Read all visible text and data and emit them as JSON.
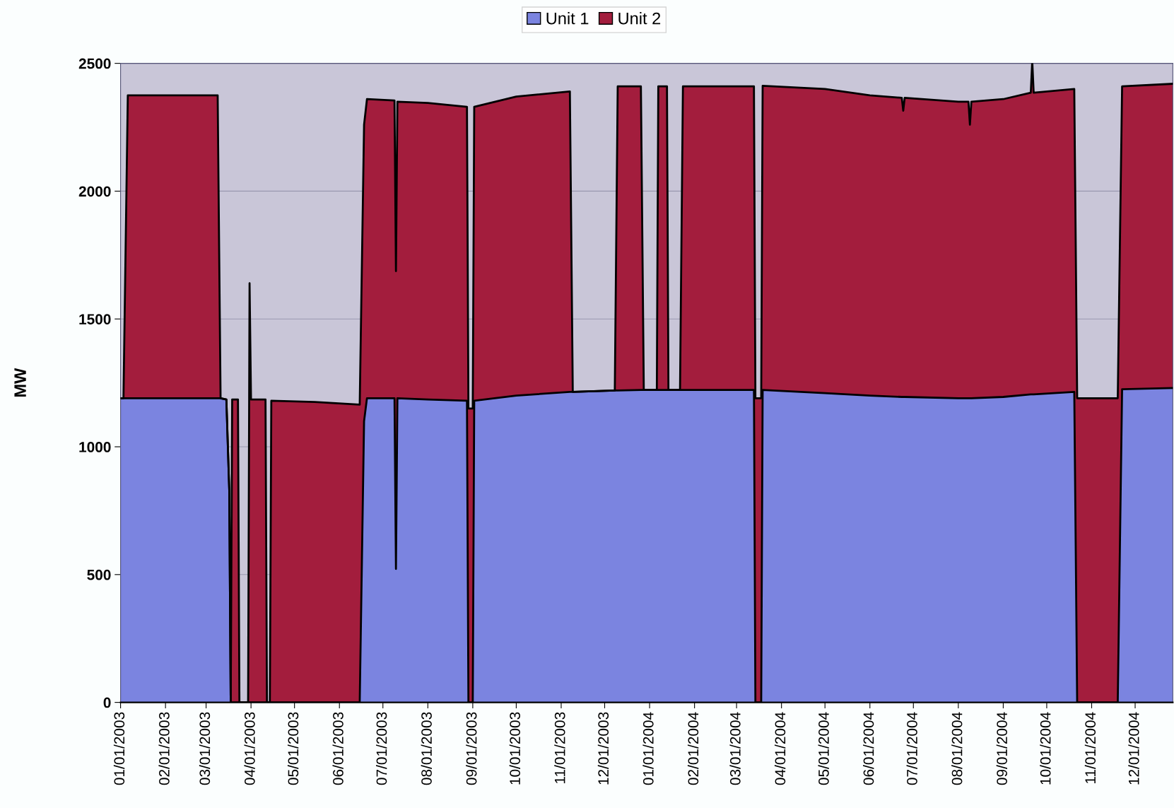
{
  "chart_data": {
    "type": "area",
    "stacked": true,
    "ylabel": "MW",
    "x": [
      "2003-01-01",
      "2003-01-03",
      "2003-01-06",
      "2003-02-01",
      "2003-03-09",
      "2003-03-11",
      "2003-03-15",
      "2003-03-17",
      "2003-03-18",
      "2003-03-19",
      "2003-03-23",
      "2003-03-24",
      "2003-03-30",
      "2003-03-31",
      "2003-04-01",
      "2003-04-11",
      "2003-04-12",
      "2003-04-14",
      "2003-04-15",
      "2003-05-15",
      "2003-06-15",
      "2003-06-18",
      "2003-06-20",
      "2003-07-09",
      "2003-07-10",
      "2003-07-11",
      "2003-08-01",
      "2003-08-28",
      "2003-08-29",
      "2003-09-01",
      "2003-09-02",
      "2003-10-01",
      "2003-11-07",
      "2003-11-09",
      "2003-12-08",
      "2003-12-10",
      "2003-12-26",
      "2003-12-28",
      "2004-01-06",
      "2004-01-07",
      "2004-01-13",
      "2004-01-14",
      "2004-01-22",
      "2004-01-24",
      "2004-03-13",
      "2004-03-14",
      "2004-03-18",
      "2004-03-19",
      "2004-05-01",
      "2004-06-01",
      "2004-06-23",
      "2004-06-24",
      "2004-06-25",
      "2004-08-01",
      "2004-08-08",
      "2004-08-09",
      "2004-08-10",
      "2004-09-01",
      "2004-09-20",
      "2004-09-21",
      "2004-09-22",
      "2004-10-20",
      "2004-10-22",
      "2004-11-19",
      "2004-11-22",
      "2004-12-27"
    ],
    "series": [
      {
        "name": "Unit 1",
        "color": "#7b84e0",
        "values": [
          1190,
          1190,
          1190,
          1190,
          1190,
          1190,
          1185,
          830,
          0,
          0,
          0,
          0,
          0,
          0,
          0,
          0,
          0,
          0,
          0,
          0,
          0,
          1100,
          1190,
          1190,
          522,
          1190,
          1185,
          1180,
          0,
          0,
          1180,
          1200,
          1215,
          1215,
          1220,
          1220,
          1222,
          1222,
          1222,
          1222,
          1222,
          1222,
          1222,
          1222,
          1222,
          0,
          0,
          1222,
          1210,
          1200,
          1195,
          1195,
          1195,
          1190,
          1190,
          1190,
          1190,
          1195,
          1205,
          1205,
          1205,
          1215,
          0,
          0,
          1225,
          1230
        ]
      },
      {
        "name": "Unit 2",
        "color": "#a31d3d",
        "values": [
          0,
          0,
          1185,
          1185,
          1185,
          0,
          0,
          0,
          0,
          1185,
          1185,
          0,
          0,
          1640,
          1185,
          1185,
          0,
          0,
          1180,
          1175,
          1165,
          1160,
          1170,
          1165,
          1165,
          1160,
          1160,
          1150,
          1150,
          1150,
          1150,
          1170,
          1175,
          0,
          0,
          1190,
          1188,
          0,
          0,
          1188,
          1188,
          0,
          0,
          1188,
          1188,
          1190,
          1190,
          1190,
          1190,
          1175,
          1170,
          1120,
          1170,
          1160,
          1160,
          1070,
          1160,
          1165,
          1180,
          1305,
          1180,
          1185,
          1190,
          1190,
          1185,
          1190
        ]
      }
    ],
    "xlim": [
      "2003-01-01",
      "2004-12-27"
    ],
    "xticks": [
      {
        "value": "2003-01-01",
        "label": "01/01/2003"
      },
      {
        "value": "2003-02-01",
        "label": "02/01/2003"
      },
      {
        "value": "2003-03-01",
        "label": "03/01/2003"
      },
      {
        "value": "2003-04-01",
        "label": "04/01/2003"
      },
      {
        "value": "2003-05-01",
        "label": "05/01/2003"
      },
      {
        "value": "2003-06-01",
        "label": "06/01/2003"
      },
      {
        "value": "2003-07-01",
        "label": "07/01/2003"
      },
      {
        "value": "2003-08-01",
        "label": "08/01/2003"
      },
      {
        "value": "2003-09-01",
        "label": "09/01/2003"
      },
      {
        "value": "2003-10-01",
        "label": "10/01/2003"
      },
      {
        "value": "2003-11-01",
        "label": "11/01/2003"
      },
      {
        "value": "2003-12-01",
        "label": "12/01/2003"
      },
      {
        "value": "2004-01-01",
        "label": "01/01/2004"
      },
      {
        "value": "2004-02-01",
        "label": "02/01/2004"
      },
      {
        "value": "2004-03-01",
        "label": "03/01/2004"
      },
      {
        "value": "2004-04-01",
        "label": "04/01/2004"
      },
      {
        "value": "2004-05-01",
        "label": "05/01/2004"
      },
      {
        "value": "2004-06-01",
        "label": "06/01/2004"
      },
      {
        "value": "2004-07-01",
        "label": "07/01/2004"
      },
      {
        "value": "2004-08-01",
        "label": "08/01/2004"
      },
      {
        "value": "2004-09-01",
        "label": "09/01/2004"
      },
      {
        "value": "2004-10-01",
        "label": "10/01/2004"
      },
      {
        "value": "2004-11-01",
        "label": "11/01/2004"
      },
      {
        "value": "2004-12-01",
        "label": "12/01/2004"
      }
    ],
    "ylim": [
      0,
      2500
    ],
    "yticks": [
      0,
      500,
      1000,
      1500,
      2000,
      2500
    ],
    "grid": "y",
    "legend": "top"
  }
}
